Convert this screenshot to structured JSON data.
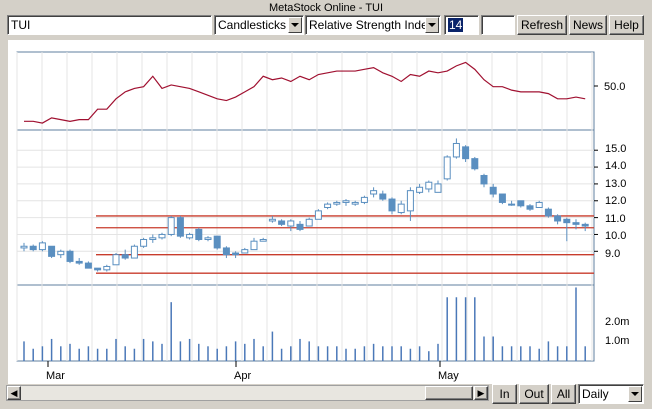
{
  "window": {
    "title": "MetaStock Online - TUI"
  },
  "toolbar": {
    "symbol_value": "TUI",
    "chart_style": "Candlesticks",
    "indicator": "Relative Strength Index",
    "period_value": "14",
    "extra_value": "",
    "refresh_label": "Refresh",
    "news_label": "News",
    "help_label": "Help"
  },
  "bottom": {
    "in_label": "In",
    "out_label": "Out",
    "all_label": "All",
    "interval_value": "Daily"
  },
  "axes": {
    "rsi_ticks": [
      "50.0"
    ],
    "price_ticks": [
      "15.0",
      "14.0",
      "13.0",
      "12.0",
      "11.0",
      "10.0",
      "9.0"
    ],
    "volume_ticks": [
      "2.0m",
      "1.0m"
    ],
    "months": [
      "Mar",
      "Apr",
      "May"
    ]
  },
  "colors": {
    "rsi_line": "#a01030",
    "candle": "#5a8fc0",
    "support_line": "#c83c2c",
    "volume": "#4a78b8",
    "grid": "#e4e4e4"
  },
  "chart_data": {
    "type": "candlestick",
    "rsi": [
      40,
      40,
      39,
      42,
      41,
      40,
      41,
      41,
      47,
      47,
      53,
      57,
      59,
      60,
      66,
      59,
      61,
      60,
      59,
      57,
      55,
      53,
      52,
      54,
      57,
      60,
      66,
      64,
      65,
      63,
      66,
      64,
      67,
      68,
      69,
      69,
      69,
      70,
      71,
      68,
      66,
      63,
      67,
      66,
      69,
      68,
      69,
      72,
      74,
      70,
      64,
      60,
      60,
      58,
      57,
      57,
      57,
      56,
      53,
      53,
      54,
      53
    ],
    "price": [
      [
        9.2,
        9.5,
        9.0,
        9.3
      ],
      [
        9.3,
        9.4,
        9.0,
        9.1
      ],
      [
        9.1,
        9.6,
        9.0,
        9.5
      ],
      [
        9.3,
        9.3,
        8.6,
        8.7
      ],
      [
        8.8,
        9.1,
        8.6,
        9.0
      ],
      [
        9.0,
        9.1,
        8.3,
        8.4
      ],
      [
        8.4,
        8.6,
        8.2,
        8.3
      ],
      [
        8.3,
        8.4,
        8.0,
        8.0
      ],
      [
        8.0,
        8.0,
        7.8,
        7.9
      ],
      [
        7.9,
        8.2,
        7.8,
        8.1
      ],
      [
        8.2,
        8.9,
        8.2,
        8.8
      ],
      [
        8.8,
        9.1,
        8.5,
        8.6
      ],
      [
        8.6,
        9.4,
        8.6,
        9.3
      ],
      [
        9.3,
        9.8,
        9.2,
        9.7
      ],
      [
        9.7,
        10.0,
        9.5,
        9.8
      ],
      [
        9.8,
        10.1,
        9.7,
        10.0
      ],
      [
        10.0,
        11.1,
        9.9,
        11.0
      ],
      [
        11.0,
        11.1,
        9.8,
        9.9
      ],
      [
        9.8,
        10.1,
        9.7,
        10.0
      ],
      [
        10.3,
        10.4,
        9.6,
        9.7
      ],
      [
        9.7,
        9.9,
        9.6,
        9.8
      ],
      [
        9.9,
        9.9,
        9.1,
        9.2
      ],
      [
        9.2,
        9.3,
        8.6,
        8.8
      ],
      [
        8.9,
        9.0,
        8.6,
        8.8
      ],
      [
        8.9,
        9.2,
        8.9,
        9.1
      ],
      [
        9.1,
        9.8,
        9.1,
        9.6
      ],
      [
        9.6,
        9.8,
        9.6,
        9.7
      ],
      [
        10.8,
        11.1,
        10.7,
        10.9
      ],
      [
        10.8,
        10.9,
        10.5,
        10.6
      ],
      [
        10.5,
        10.9,
        10.2,
        10.8
      ],
      [
        10.6,
        10.8,
        10.2,
        10.3
      ],
      [
        10.5,
        11.0,
        10.5,
        10.9
      ],
      [
        10.9,
        11.5,
        10.9,
        11.4
      ],
      [
        11.6,
        11.9,
        11.5,
        11.8
      ],
      [
        11.8,
        12.0,
        11.7,
        11.9
      ],
      [
        11.9,
        12.1,
        11.7,
        12.0
      ],
      [
        11.8,
        12.0,
        11.7,
        11.9
      ],
      [
        11.9,
        12.3,
        11.8,
        12.2
      ],
      [
        12.4,
        12.8,
        12.2,
        12.6
      ],
      [
        12.4,
        12.6,
        12.0,
        12.1
      ],
      [
        12.1,
        12.2,
        11.2,
        11.4
      ],
      [
        11.3,
        12.0,
        11.2,
        11.8
      ],
      [
        11.4,
        12.8,
        10.8,
        12.6
      ],
      [
        12.5,
        13.0,
        12.4,
        12.8
      ],
      [
        12.7,
        13.2,
        12.5,
        13.1
      ],
      [
        12.5,
        13.2,
        12.5,
        13.0
      ],
      [
        13.3,
        14.7,
        13.2,
        14.6
      ],
      [
        14.6,
        15.7,
        14.5,
        15.4
      ],
      [
        15.2,
        15.3,
        14.3,
        14.5
      ],
      [
        14.5,
        14.6,
        13.8,
        13.9
      ],
      [
        13.5,
        13.6,
        12.8,
        13.0
      ],
      [
        12.8,
        13.0,
        12.2,
        12.4
      ],
      [
        12.4,
        12.4,
        11.8,
        11.9
      ],
      [
        11.8,
        12.0,
        11.7,
        11.8
      ],
      [
        12.0,
        12.0,
        11.6,
        11.7
      ],
      [
        11.7,
        11.8,
        11.4,
        11.5
      ],
      [
        11.6,
        12.0,
        11.6,
        11.9
      ],
      [
        11.5,
        11.6,
        11.0,
        11.1
      ],
      [
        11.1,
        11.2,
        10.6,
        10.8
      ],
      [
        10.9,
        11.0,
        9.6,
        10.7
      ],
      [
        10.7,
        10.9,
        10.3,
        10.6
      ],
      [
        10.6,
        10.7,
        10.2,
        10.5
      ]
    ],
    "volume": [
      0.8,
      0.5,
      0.6,
      0.9,
      0.6,
      0.7,
      0.5,
      0.6,
      0.5,
      0.5,
      0.9,
      0.6,
      0.5,
      0.9,
      0.8,
      0.7,
      2.4,
      0.8,
      0.9,
      0.7,
      0.6,
      0.5,
      0.6,
      0.8,
      0.7,
      0.9,
      0.6,
      1.2,
      0.5,
      0.6,
      0.9,
      0.8,
      0.6,
      0.6,
      0.6,
      0.5,
      0.5,
      0.6,
      0.7,
      0.6,
      0.6,
      0.6,
      0.5,
      0.6,
      0.4,
      0.7,
      2.6,
      2.6,
      2.6,
      2.6,
      1.0,
      1.0,
      0.6,
      0.6,
      0.6,
      0.6,
      0.5,
      0.8,
      0.6,
      0.6,
      3.0,
      0.6
    ],
    "support_lines": [
      11.1,
      10.4,
      8.8,
      7.7
    ],
    "rsi_range": [
      35,
      80
    ],
    "price_range": [
      7.0,
      16.2
    ],
    "volume_range": [
      0,
      3.1
    ]
  }
}
